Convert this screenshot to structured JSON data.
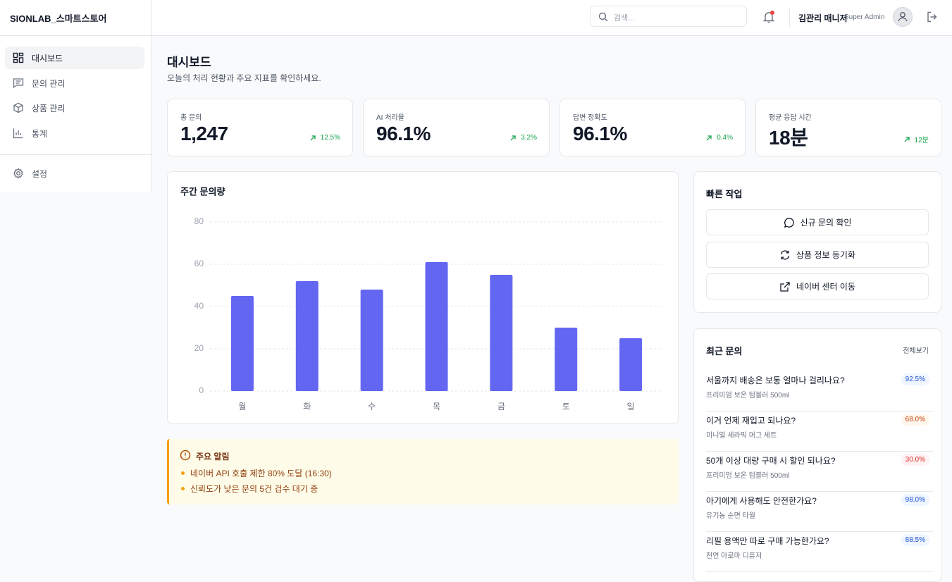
{
  "sidebar": {
    "logo": "SIONLAB_스마트스토어",
    "nav": [
      "대시보드",
      "문의 관리",
      "상품 관리",
      "통계"
    ],
    "settings": "설정"
  },
  "header": {
    "search_placeholder": "검색...",
    "user_name": "김관리 매니저",
    "user_role": "Super Admin"
  },
  "page": {
    "title": "대시보드",
    "subtitle": "오늘의 처리 현황과 주요 지표를 확인하세요."
  },
  "stats": [
    {
      "label": "총 문의",
      "value": "1,247",
      "change": "12.5%"
    },
    {
      "label": "AI 처리율",
      "value": "96.1%",
      "change": "3.2%"
    },
    {
      "label": "답변 정확도",
      "value": "96.1%",
      "change": "0.4%"
    },
    {
      "label": "평균 응답 시간",
      "value": "18분",
      "change": "12분"
    }
  ],
  "chart_data": {
    "type": "bar",
    "title": "주간 문의량",
    "categories": [
      "월",
      "화",
      "수",
      "목",
      "금",
      "토",
      "일"
    ],
    "values": [
      45,
      52,
      48,
      61,
      55,
      30,
      25
    ],
    "color": "#6366f1",
    "ylim": [
      0,
      80
    ],
    "yticks": [
      0,
      20,
      40,
      60,
      80
    ],
    "grid": true
  },
  "quick_actions": {
    "title": "빠른 작업",
    "buttons": [
      "신규 문의 확인",
      "상품 정보 동기화",
      "네이버 센터 이동"
    ]
  },
  "alert": {
    "title": "주요 알림",
    "items": [
      "네이버 API 호출 제한 80% 도달 (16:30)",
      "신뢰도가 낮은 문의 5건 검수 대기 중"
    ]
  },
  "recent": {
    "title": "최근 문의",
    "view_all": "전체보기",
    "items": [
      {
        "title": "서울까지 배송은 보통 얼마나 걸리나요?",
        "product": "프리미엄 보온 텀블러 500ml",
        "score": "92.5%"
      },
      {
        "title": "이거 언제 재입고 되나요?",
        "product": "미니멀 세라믹 머그 세트",
        "score": "68.0%"
      },
      {
        "title": "50개 이상 대량 구매 시 할인 되나요?",
        "product": "프리미엄 보온 텀블러 500ml",
        "score": "30.0%"
      },
      {
        "title": "아기에게 사용해도 안전한가요?",
        "product": "유기농 순면 타월",
        "score": "98.0%"
      },
      {
        "title": "리필 용액만 따로 구매 가능한가요?",
        "product": "천연 아로마 디퓨저",
        "score": "88.5%"
      }
    ]
  }
}
